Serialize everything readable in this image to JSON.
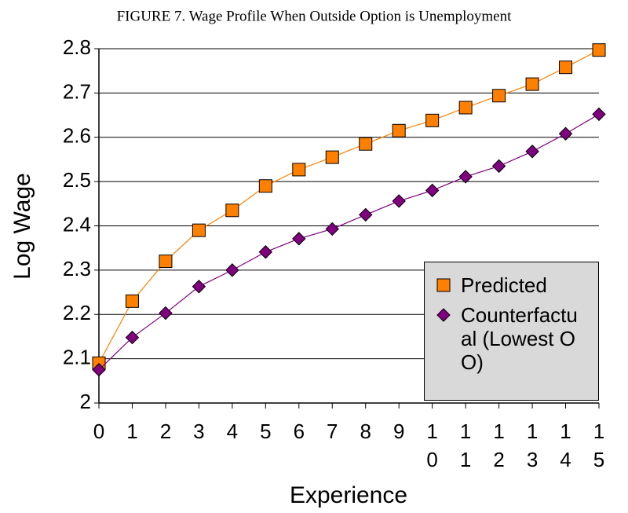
{
  "chart_data": {
    "type": "line",
    "title": "FIGURE 7. Wage Profile When Outside Option is Unemployment",
    "x_label": "Experience",
    "y_label": "Log Wage",
    "categories": [
      "0",
      "1",
      "2",
      "3",
      "4",
      "5",
      "6",
      "7",
      "8",
      "9",
      "10",
      "11",
      "12",
      "13",
      "14",
      "15"
    ],
    "series": [
      {
        "name": "Predicted",
        "color": "#ff8000",
        "marker": "square",
        "values": [
          2.09,
          2.23,
          2.32,
          2.39,
          2.435,
          2.49,
          2.527,
          2.555,
          2.585,
          2.615,
          2.638,
          2.667,
          2.694,
          2.72,
          2.758,
          2.797
        ]
      },
      {
        "name": "Counterfactual (Lowest OO)",
        "color": "#800080",
        "marker": "diamond",
        "values": [
          2.075,
          2.148,
          2.203,
          2.263,
          2.3,
          2.341,
          2.371,
          2.393,
          2.425,
          2.456,
          2.48,
          2.511,
          2.535,
          2.568,
          2.608,
          2.652
        ]
      }
    ],
    "ylim": [
      2,
      2.8
    ],
    "yticks": [
      2,
      2.1,
      2.2,
      2.3,
      2.4,
      2.5,
      2.6,
      2.7,
      2.8
    ],
    "grid": true
  }
}
